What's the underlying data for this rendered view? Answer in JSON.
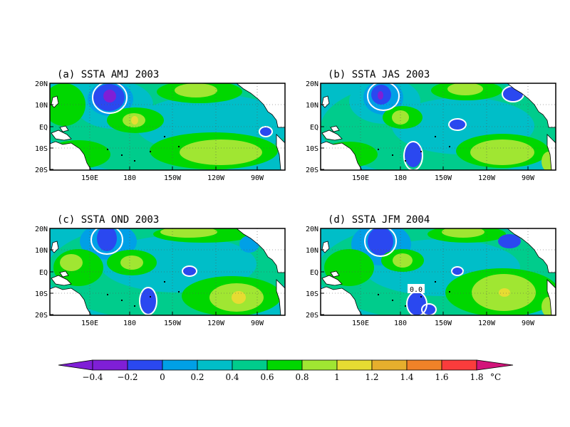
{
  "colors": {
    "lt_m02": "#7f1fd6",
    "m02_0": "#2a48f0",
    "c0_02": "#00a0e6",
    "c02_04": "#00bec8",
    "c04_06": "#00cc8c",
    "c06_08": "#00d700",
    "c08_1": "#a0e632",
    "c1_12": "#e6dc32",
    "c12_14": "#e6af2d",
    "c14_16": "#f08228",
    "c16_18": "#fa3c3c",
    "gt_18": "#d2147a"
  },
  "panels": [
    {
      "title": "(a) SSTA AMJ 2003"
    },
    {
      "title": "(b) SSTA JAS 2003"
    },
    {
      "title": "(c) SSTA OND 2003"
    },
    {
      "title": "(d) SSTA JFM 2004"
    }
  ],
  "lat_labels": [
    "20N",
    "10N",
    "EQ",
    "10S",
    "20S"
  ],
  "lon_labels": [
    "150E",
    "180",
    "150W",
    "120W",
    "90W"
  ],
  "contour_label": "0.0",
  "colorbar": {
    "labels": [
      "-0.4",
      "-0.2",
      "0",
      "0.2",
      "0.4",
      "0.6",
      "0.8",
      "1",
      "1.2",
      "1.4",
      "1.6",
      "1.8"
    ],
    "unit": "°C"
  }
}
